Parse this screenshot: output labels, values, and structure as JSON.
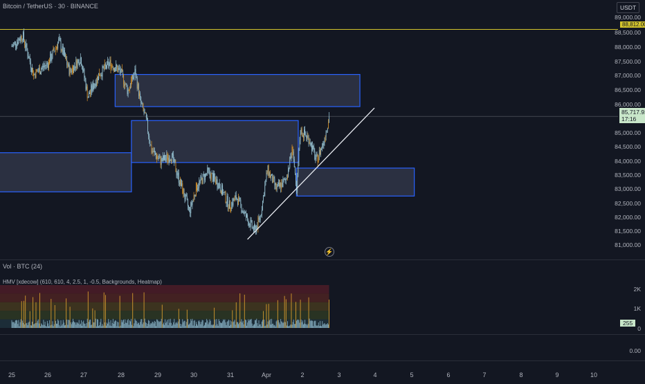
{
  "header": {
    "symbol_title": "Bitcoin / TetherUS · 30 · BINANCE",
    "currency_badge": "USDT"
  },
  "price_axis": {
    "labels": [
      "89,000.00",
      "88,500.00",
      "88,000.00",
      "87,500.00",
      "87,000.00",
      "86,500.00",
      "86,000.00",
      "85,000.00",
      "84,500.00",
      "84,000.00",
      "83,500.00",
      "83,000.00",
      "82,500.00",
      "82,000.00",
      "81,500.00",
      "81,000.00"
    ],
    "current_price": "85,717.92",
    "countdown": "17:16",
    "alert_price_tag": "88,812.00"
  },
  "volume_pane": {
    "title": "Vol · BTC (24)",
    "indicator": "HMV [xdecow] (610, 610, 4, 2.5, 1, -0.5, Backgrounds, Heatmap)",
    "axis_labels": [
      "2K",
      "1K",
      "0"
    ],
    "current_volume": "255"
  },
  "lower_pane": {
    "axis_label": "0.00"
  },
  "time_axis": [
    "25",
    "26",
    "27",
    "28",
    "29",
    "30",
    "31",
    "Apr",
    "2",
    "3",
    "4",
    "5",
    "6",
    "7",
    "8",
    "9",
    "10"
  ],
  "colors": {
    "background": "#131722",
    "zone_border": "#2962ff",
    "zone_fill": "#4a5068",
    "candles": "#8fb8c8",
    "candles_alt": "#c98a2a",
    "trendline": "#e9ecf2",
    "alert_line": "#d4c52c",
    "current_price_bg": "#c8e6c9"
  },
  "chart_data": {
    "type": "candlestick",
    "title": "Bitcoin / TetherUS · 30 · BINANCE",
    "x_ticks": [
      "25",
      "26",
      "27",
      "28",
      "29",
      "30",
      "31",
      "Apr",
      "2",
      "3",
      "4",
      "5",
      "6",
      "7",
      "8",
      "9",
      "10"
    ],
    "ylim": [
      80700,
      89300
    ],
    "close_path": [
      {
        "x": 0.0,
        "y": 88200
      },
      {
        "x": 0.3,
        "y": 88600
      },
      {
        "x": 0.6,
        "y": 87200
      },
      {
        "x": 1.0,
        "y": 87600
      },
      {
        "x": 1.3,
        "y": 88400
      },
      {
        "x": 1.6,
        "y": 87300
      },
      {
        "x": 1.9,
        "y": 87800
      },
      {
        "x": 2.1,
        "y": 86400
      },
      {
        "x": 2.4,
        "y": 87200
      },
      {
        "x": 2.7,
        "y": 87600
      },
      {
        "x": 3.0,
        "y": 87300
      },
      {
        "x": 3.2,
        "y": 86600
      },
      {
        "x": 3.4,
        "y": 87300
      },
      {
        "x": 3.55,
        "y": 86200
      },
      {
        "x": 3.7,
        "y": 85600
      },
      {
        "x": 3.85,
        "y": 84500
      },
      {
        "x": 4.1,
        "y": 84100
      },
      {
        "x": 4.4,
        "y": 84300
      },
      {
        "x": 4.7,
        "y": 83100
      },
      {
        "x": 4.9,
        "y": 82300
      },
      {
        "x": 5.1,
        "y": 83200
      },
      {
        "x": 5.4,
        "y": 83700
      },
      {
        "x": 5.7,
        "y": 83300
      },
      {
        "x": 6.0,
        "y": 82500
      },
      {
        "x": 6.2,
        "y": 82800
      },
      {
        "x": 6.5,
        "y": 82000
      },
      {
        "x": 6.7,
        "y": 81600
      },
      {
        "x": 6.85,
        "y": 82100
      },
      {
        "x": 7.05,
        "y": 83800
      },
      {
        "x": 7.3,
        "y": 83100
      },
      {
        "x": 7.55,
        "y": 83400
      },
      {
        "x": 7.75,
        "y": 84600
      },
      {
        "x": 7.85,
        "y": 82800
      },
      {
        "x": 7.95,
        "y": 85200
      },
      {
        "x": 8.2,
        "y": 84900
      },
      {
        "x": 8.4,
        "y": 84100
      },
      {
        "x": 8.6,
        "y": 84800
      },
      {
        "x": 8.75,
        "y": 85700
      }
    ],
    "zones": [
      {
        "x0": -0.5,
        "x1": 3.3,
        "y0": 83000,
        "y1": 84400
      },
      {
        "x0": 2.85,
        "x1": 9.6,
        "y0": 86050,
        "y1": 87200
      },
      {
        "x0": 3.3,
        "x1": 7.9,
        "y0": 84050,
        "y1": 85550
      },
      {
        "x0": 7.85,
        "x1": 11.1,
        "y0": 82850,
        "y1": 83850
      }
    ],
    "trendline": [
      {
        "x": 6.5,
        "y": 81300
      },
      {
        "x": 10.0,
        "y": 86000
      }
    ],
    "alert_level": 88812,
    "volume_ylim": [
      0,
      2300
    ]
  }
}
